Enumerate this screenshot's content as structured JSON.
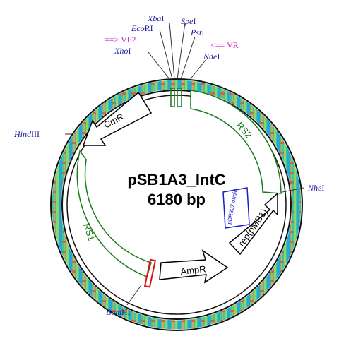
{
  "plasmid": {
    "name": "pSB1A3_IntC",
    "size": "6180 bp"
  },
  "restriction_sites": [
    {
      "italic": "Xba",
      "roman": "I"
    },
    {
      "italic": "Spe",
      "roman": "I"
    },
    {
      "italic": "Eco",
      "roman": "RI"
    },
    {
      "italic": "Pst",
      "roman": "I"
    },
    {
      "italic": "Xho",
      "roman": "I"
    },
    {
      "italic": "Nde",
      "roman": "I"
    },
    {
      "italic": "Hind",
      "roman": "III"
    },
    {
      "italic": "Nhe",
      "roman": "I"
    },
    {
      "italic": "Bam",
      "roman": "HI"
    }
  ],
  "primers": [
    {
      "label": "==> VF2"
    },
    {
      "label": "<== VR"
    }
  ],
  "features": {
    "cmr": "CmR",
    "ampr": "AmpR",
    "rep": "rep(pMB1)",
    "ori": "pBR322 origin",
    "rs1": "RS1",
    "rs2": "RS2"
  },
  "colors": {
    "backbone_dark": "#111111",
    "backbone_fill": "#3ec89a",
    "region_green": "#1a7a1a",
    "site_label": "#1a1a9a",
    "primer_label": "#cc22cc",
    "ori_box": "#1a1acc",
    "marker_red": "#dd1111"
  }
}
